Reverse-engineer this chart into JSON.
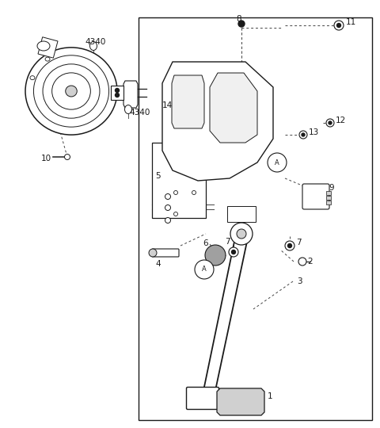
{
  "bg_color": "#ffffff",
  "line_color": "#1a1a1a",
  "gray_light": "#d0d0d0",
  "gray_med": "#a0a0a0",
  "fig_width": 4.8,
  "fig_height": 5.4,
  "dpi": 100
}
